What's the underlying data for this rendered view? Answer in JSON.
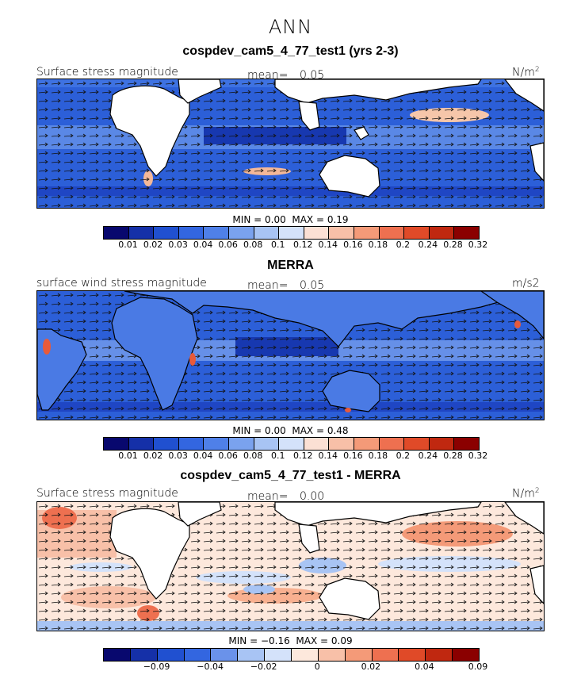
{
  "main_title": "ANN",
  "panels": [
    {
      "title": "cospdev_cam5_4_77_test1 (yrs 2-3)",
      "variable": "Surface stress magnitude",
      "mean_label": "mean=",
      "mean_value": "0.05",
      "units": "N/m",
      "units_sup": "2",
      "min_label": "MIN =",
      "min_value": "0.00",
      "max_label": "MAX =",
      "max_value": "0.19",
      "colorbar_ticks": [
        "0.01",
        "0.02",
        "0.03",
        "0.04",
        "0.06",
        "0.08",
        "0.1",
        "0.12",
        "0.14",
        "0.16",
        "0.18",
        "0.2",
        "0.24",
        "0.28",
        "0.32"
      ]
    },
    {
      "title": "MERRA",
      "variable": "surface wind stress magnitude",
      "mean_label": "mean=",
      "mean_value": "0.05",
      "units": "m/s2",
      "units_sup": "",
      "min_label": "MIN =",
      "min_value": "0.00",
      "max_label": "MAX =",
      "max_value": "0.48",
      "colorbar_ticks": [
        "0.01",
        "0.02",
        "0.03",
        "0.04",
        "0.06",
        "0.08",
        "0.1",
        "0.12",
        "0.14",
        "0.16",
        "0.18",
        "0.2",
        "0.24",
        "0.28",
        "0.32"
      ]
    },
    {
      "title": "cospdev_cam5_4_77_test1 - MERRA",
      "variable": "Surface stress magnitude",
      "mean_label": "mean=",
      "mean_value": "0.00",
      "units": "N/m",
      "units_sup": "2",
      "min_label": "MIN =",
      "min_value": "−0.16",
      "max_label": "MAX =",
      "max_value": "0.09",
      "colorbar_ticks": [
        "−0.09",
        "−0.04",
        "−0.02",
        "0",
        "0.02",
        "0.04",
        "0.09"
      ]
    }
  ],
  "colors": {
    "abs_scale": [
      "#08086e",
      "#1530a8",
      "#2050d0",
      "#3366e0",
      "#4f80e8",
      "#7aa2ee",
      "#a8c4f4",
      "#d4e2fa",
      "#fbe0d4",
      "#f8c0a8",
      "#f49a78",
      "#ee7050",
      "#e04a28",
      "#c02810",
      "#8b0000"
    ],
    "diff_scale": [
      "#08086e",
      "#1530a8",
      "#2050d0",
      "#3366e0",
      "#6a92ea",
      "#a8c4f4",
      "#d4e2fa",
      "#fde8dc",
      "#f8c0a8",
      "#f49a78",
      "#ee7050",
      "#e04a28",
      "#c02810",
      "#8b0000"
    ]
  }
}
